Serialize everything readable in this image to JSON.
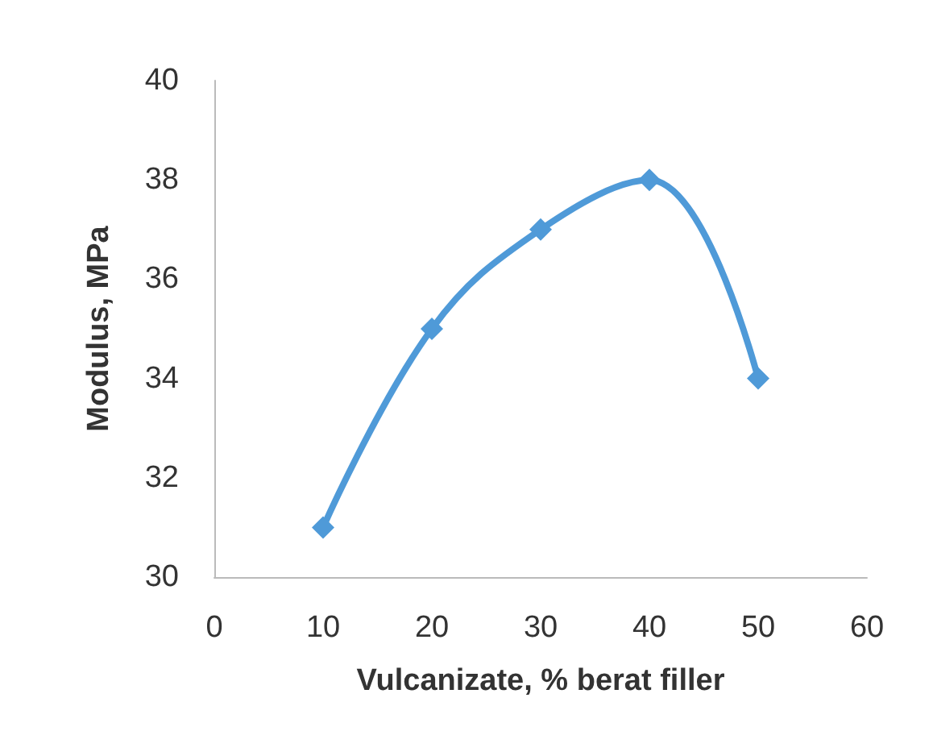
{
  "chart_data": {
    "type": "line",
    "xlabel": "Vulcanizate, % berat filler",
    "ylabel": "Modulus, MPa",
    "x": [
      10,
      20,
      30,
      40,
      50
    ],
    "series": [
      {
        "color": "#4f9ad8",
        "values": [
          31,
          35,
          37,
          38,
          34
        ]
      }
    ],
    "xlim": [
      0,
      60
    ],
    "xticks": [
      0,
      10,
      20,
      30,
      40,
      50,
      60
    ],
    "ylim": [
      30,
      40
    ],
    "yticks": [
      30,
      32,
      34,
      36,
      38,
      40
    ],
    "grid": false,
    "marker": "diamond",
    "line_style": "solid"
  }
}
